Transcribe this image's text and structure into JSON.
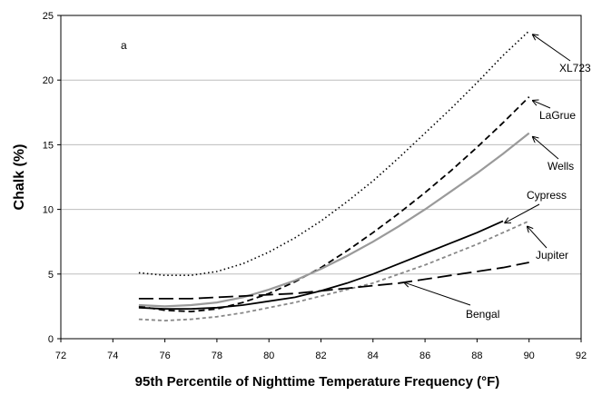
{
  "chart_data": {
    "type": "line",
    "title": "",
    "panel_label": "a",
    "xlabel": "95th Percentile of Nighttime Temperature Frequency (°F)",
    "ylabel": "Chalk (%)",
    "xlim": [
      72,
      92
    ],
    "ylim": [
      0,
      25
    ],
    "xticks": [
      "72",
      "74",
      "76",
      "78",
      "80",
      "82",
      "84",
      "86",
      "88",
      "90",
      "92"
    ],
    "yticks": [
      "0",
      "5",
      "10",
      "15",
      "20",
      "25"
    ],
    "grid": true,
    "legend": "none (lines labeled with arrows)",
    "series": [
      {
        "name": "XL723",
        "style": "dotted",
        "color": "#000000",
        "x": [
          75,
          76,
          77,
          78,
          79,
          80,
          81,
          82,
          83,
          84,
          85,
          86,
          87,
          88,
          89,
          90
        ],
        "y": [
          5.1,
          4.9,
          4.9,
          5.2,
          5.8,
          6.7,
          7.8,
          9.1,
          10.6,
          12.2,
          14.0,
          15.9,
          17.8,
          19.8,
          21.9,
          23.8
        ]
      },
      {
        "name": "LaGrue",
        "style": "dashed",
        "color": "#000000",
        "x": [
          75,
          76,
          77,
          78,
          79,
          80,
          81,
          82,
          83,
          84,
          85,
          86,
          87,
          88,
          89,
          90
        ],
        "y": [
          2.5,
          2.2,
          2.1,
          2.3,
          2.8,
          3.5,
          4.4,
          5.5,
          6.8,
          8.2,
          9.7,
          11.3,
          13.0,
          14.8,
          16.7,
          18.7
        ]
      },
      {
        "name": "Wells",
        "style": "solid",
        "color": "#9a9a9a",
        "x": [
          75,
          76,
          77,
          78,
          79,
          80,
          81,
          82,
          83,
          84,
          85,
          86,
          87,
          88,
          89,
          90
        ],
        "y": [
          2.6,
          2.5,
          2.6,
          2.8,
          3.2,
          3.8,
          4.5,
          5.4,
          6.4,
          7.5,
          8.7,
          10.0,
          11.4,
          12.8,
          14.3,
          15.9
        ]
      },
      {
        "name": "Cypress",
        "style": "solid",
        "color": "#000000",
        "x": [
          75,
          76,
          77,
          78,
          79,
          80,
          81,
          82,
          83,
          84,
          85,
          86,
          87,
          88,
          89
        ],
        "y": [
          2.4,
          2.3,
          2.3,
          2.4,
          2.6,
          2.9,
          3.2,
          3.7,
          4.3,
          5.0,
          5.8,
          6.6,
          7.4,
          8.2,
          9.1
        ]
      },
      {
        "name": "Jupiter",
        "style": "short-dashed",
        "color": "#888888",
        "x": [
          75,
          76,
          77,
          78,
          79,
          80,
          81,
          82,
          83,
          84,
          85,
          86,
          87,
          88,
          89,
          90
        ],
        "y": [
          1.5,
          1.4,
          1.5,
          1.7,
          2.0,
          2.4,
          2.8,
          3.3,
          3.8,
          4.3,
          5.0,
          5.7,
          6.5,
          7.3,
          8.2,
          9.1
        ]
      },
      {
        "name": "Bengal",
        "style": "long-dashed",
        "color": "#000000",
        "x": [
          75,
          76,
          77,
          78,
          79,
          80,
          81,
          82,
          83,
          84,
          85,
          86,
          87,
          88,
          89,
          90
        ],
        "y": [
          3.1,
          3.1,
          3.1,
          3.2,
          3.3,
          3.4,
          3.5,
          3.7,
          3.9,
          4.1,
          4.3,
          4.6,
          4.9,
          5.2,
          5.5,
          5.9
        ]
      }
    ],
    "annotations": [
      {
        "label": "XL723",
        "series": "XL723"
      },
      {
        "label": "LaGrue",
        "series": "LaGrue"
      },
      {
        "label": "Wells",
        "series": "Wells"
      },
      {
        "label": "Cypress",
        "series": "Cypress"
      },
      {
        "label": "Jupiter",
        "series": "Jupiter"
      },
      {
        "label": "Bengal",
        "series": "Bengal"
      }
    ]
  }
}
